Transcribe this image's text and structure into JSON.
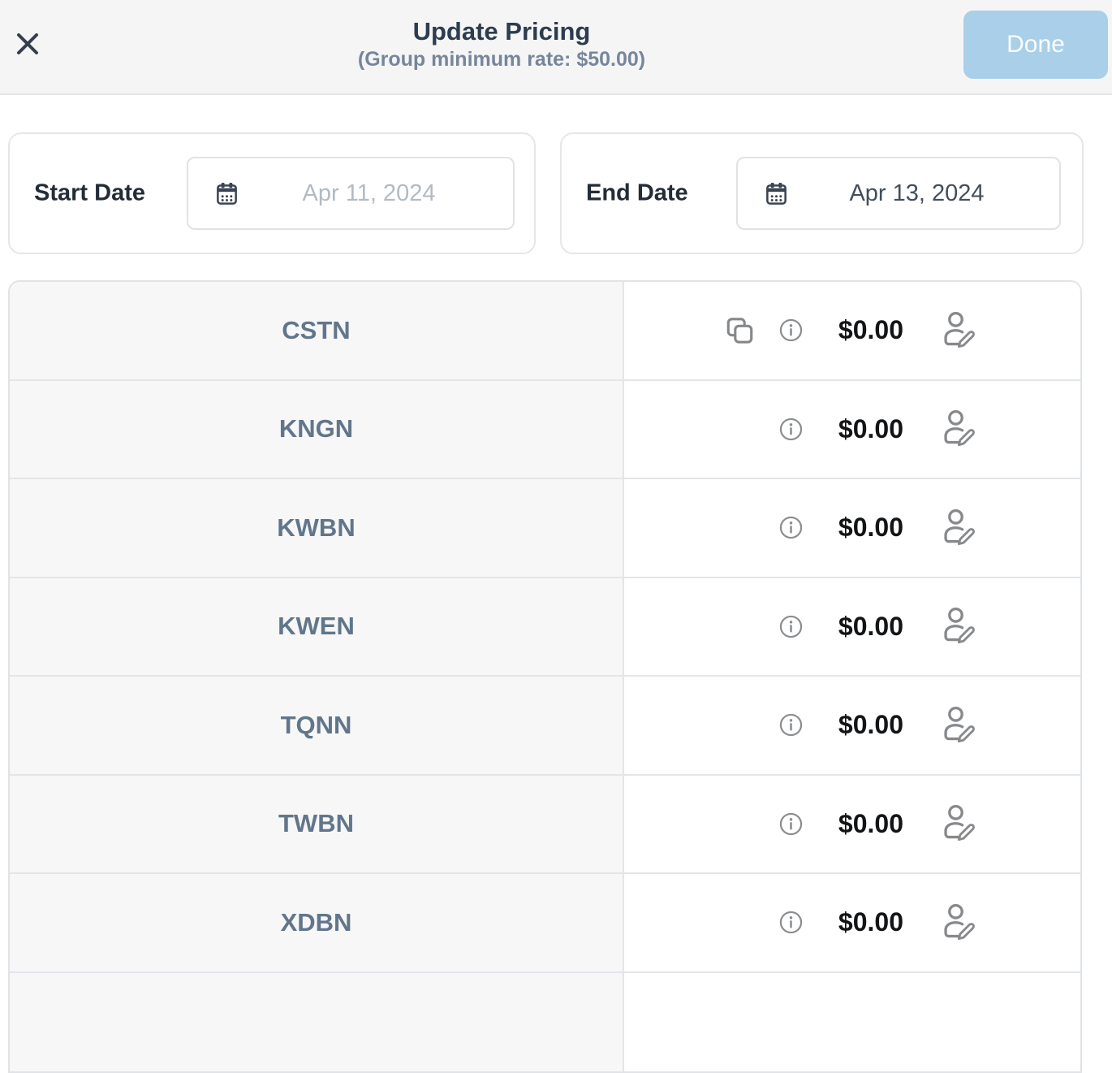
{
  "header": {
    "title": "Update Pricing",
    "subtitle": "(Group minimum rate: $50.00)",
    "done_label": "Done"
  },
  "filters": {
    "start": {
      "label": "Start Date",
      "placeholder": "Apr 11, 2024",
      "value": ""
    },
    "end": {
      "label": "End Date",
      "value": "Apr 13, 2024"
    }
  },
  "table": {
    "rows": [
      {
        "code": "CSTN",
        "price": "$0.00",
        "has_copy": true
      },
      {
        "code": "KNGN",
        "price": "$0.00",
        "has_copy": false
      },
      {
        "code": "KWBN",
        "price": "$0.00",
        "has_copy": false
      },
      {
        "code": "KWEN",
        "price": "$0.00",
        "has_copy": false
      },
      {
        "code": "TQNN",
        "price": "$0.00",
        "has_copy": false
      },
      {
        "code": "TWBN",
        "price": "$0.00",
        "has_copy": false
      },
      {
        "code": "XDBN",
        "price": "$0.00",
        "has_copy": false
      }
    ]
  },
  "icons": {
    "close": "x-icon",
    "calendar": "calendar-icon",
    "copy": "copy-icon",
    "info": "info-icon",
    "edit": "person-edit-icon"
  },
  "colors": {
    "header_bg": "#f5f5f6",
    "title": "#2d3c4e",
    "subtitle": "#76869b",
    "done_bg": "#a9cfe9",
    "done_text": "#fbfdfe",
    "row_code_text": "#61768b",
    "row_code_bg": "#f7f7f8",
    "price_text": "#121416",
    "divider": "#e3e6e9",
    "icon_gray": "#87898c",
    "calendar_icon": "#3b4451",
    "placeholder_text": "#b2bac2",
    "date_value_text": "#434e5a"
  }
}
